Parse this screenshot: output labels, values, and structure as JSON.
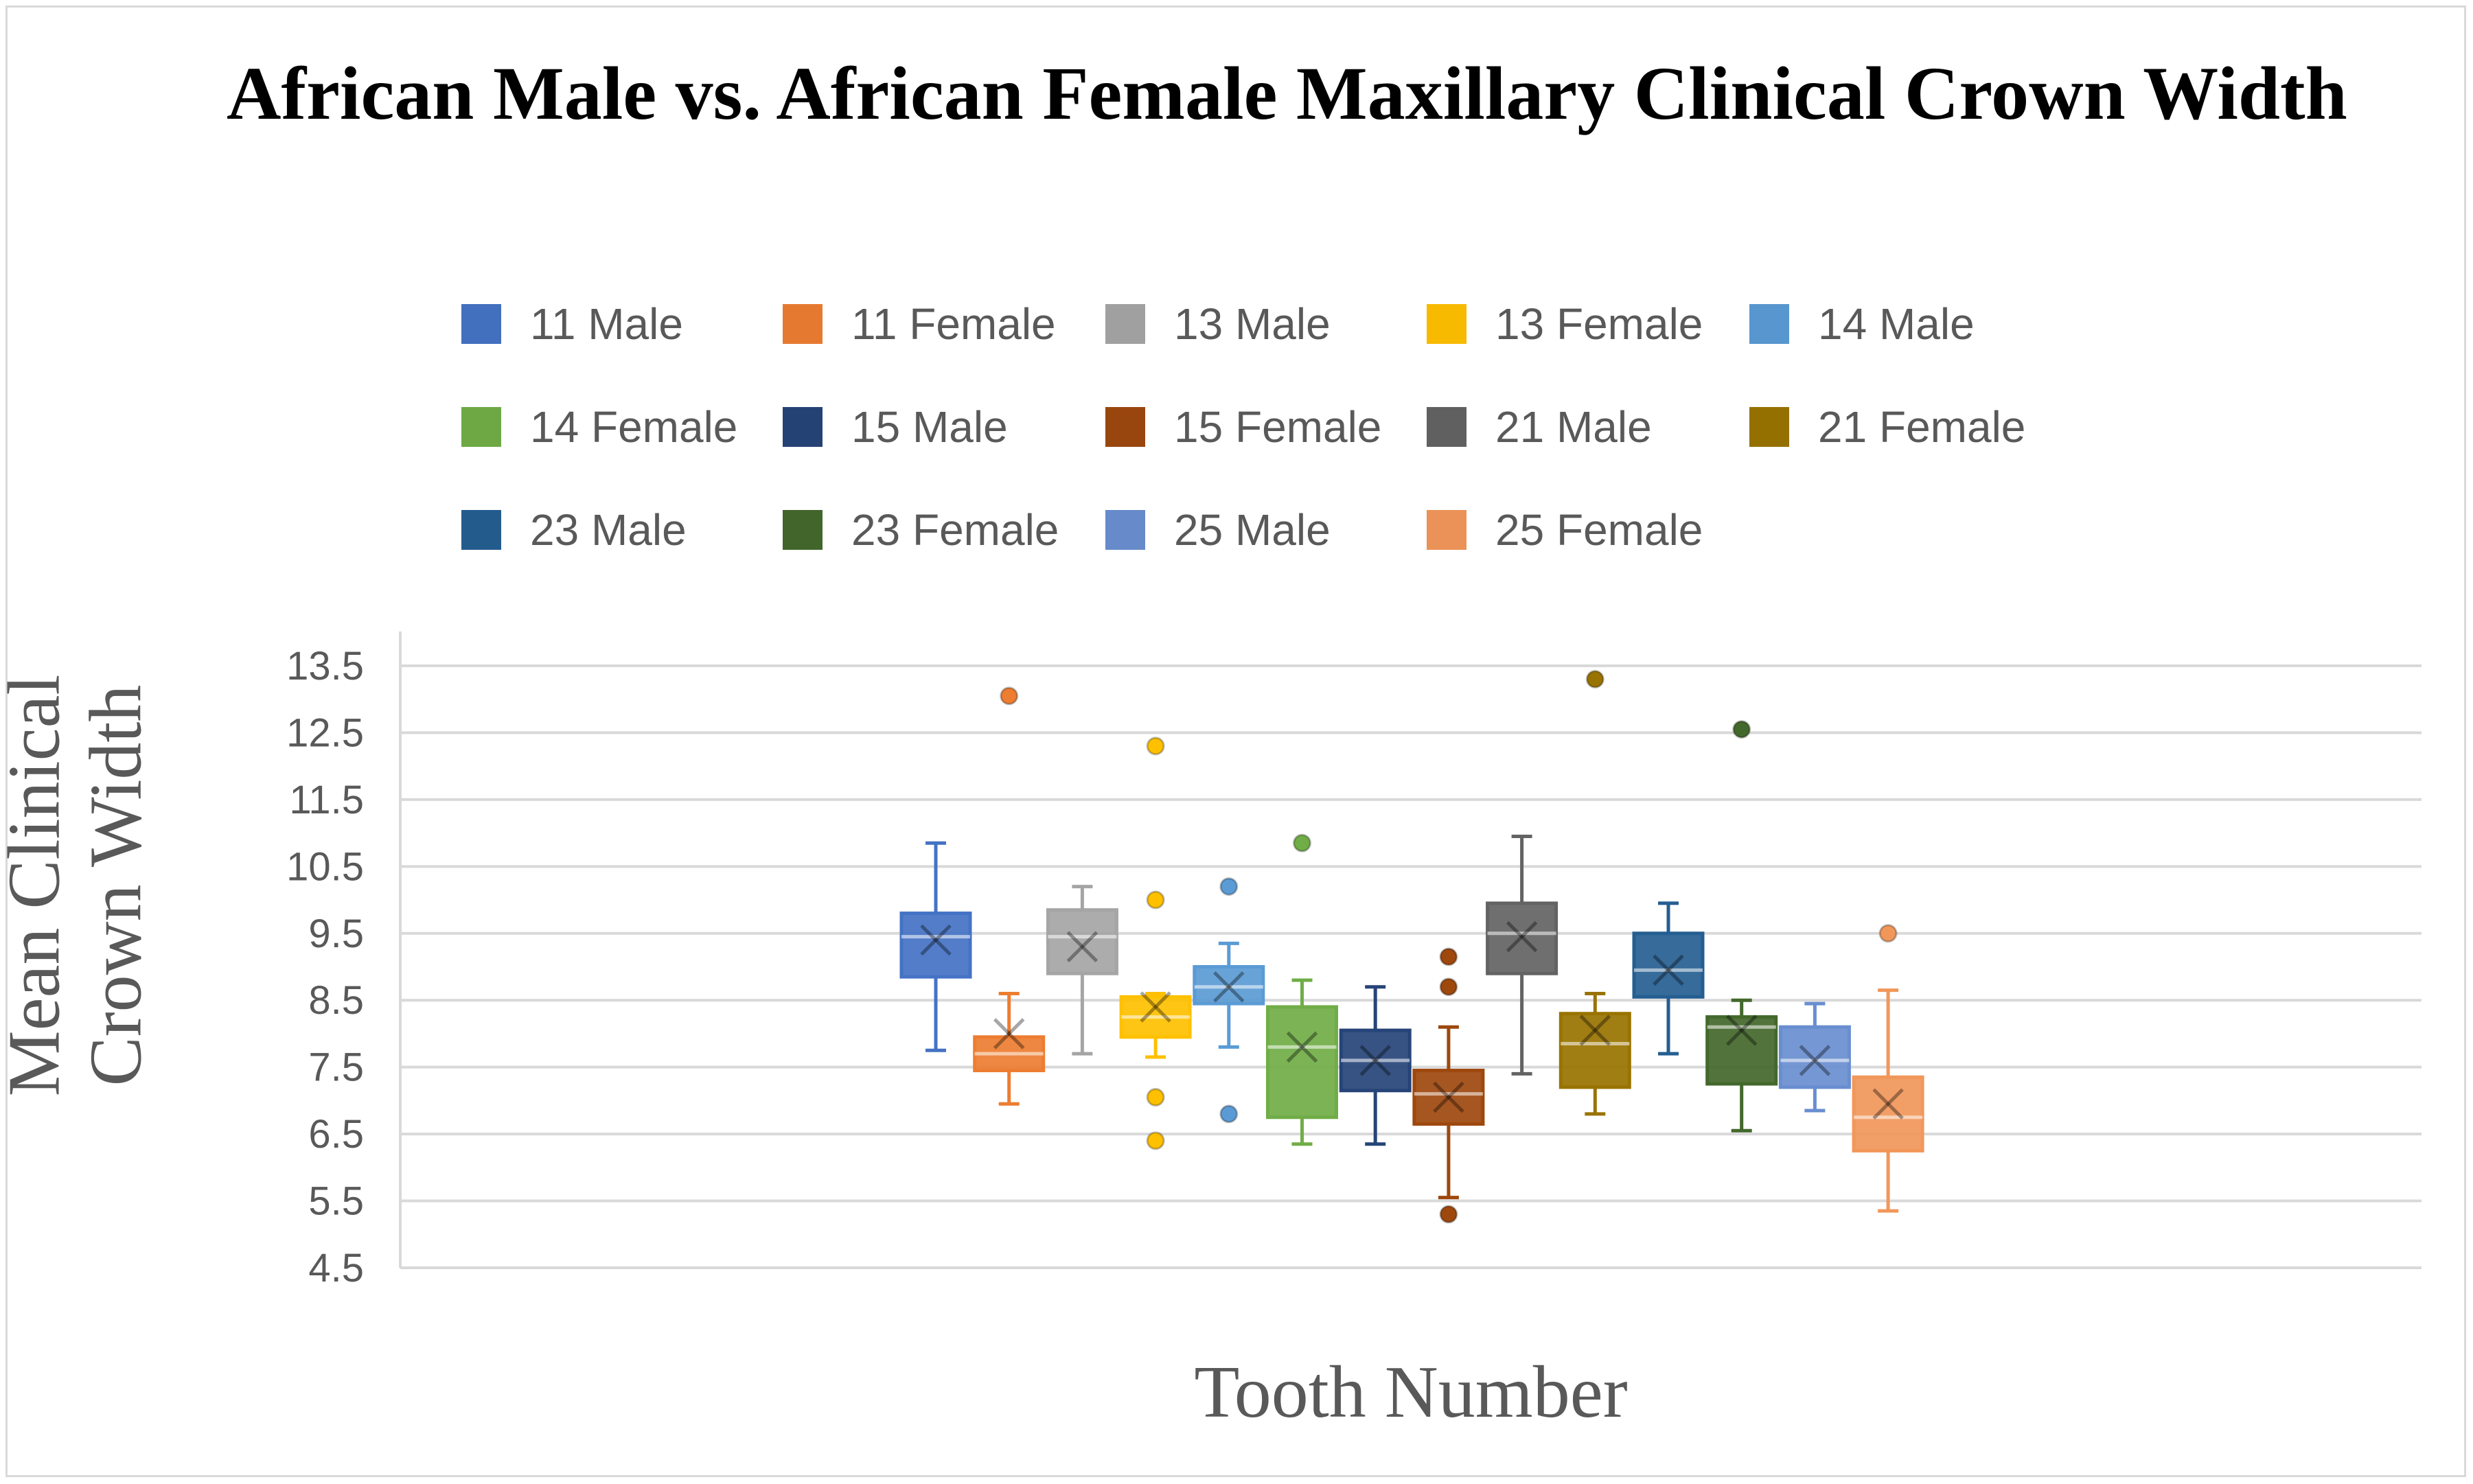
{
  "chart_data": {
    "type": "box",
    "title": "African Male vs. African Female Maxillary Clinical Crown Width",
    "xlabel": "Tooth Number",
    "ylabel": "Mean Clinical Crown Width",
    "ylim": [
      4.5,
      13.5
    ],
    "yticks": [
      "13.5",
      "12.5",
      "11.5",
      "10.5",
      "9.5",
      "8.5",
      "7.5",
      "6.5",
      "5.5",
      "4.5"
    ],
    "grid": true,
    "legend_position": "top",
    "series": [
      {
        "name": "11 Male",
        "color": "#4472c4",
        "fill": "#4472c4",
        "min": 7.75,
        "q1": 8.85,
        "median": 9.45,
        "q3": 9.8,
        "max": 10.85,
        "mean": 9.4,
        "outliers": []
      },
      {
        "name": "11 Female",
        "color": "#ed7d31",
        "fill": "#ed7d31",
        "min": 6.95,
        "q1": 7.45,
        "median": 7.7,
        "q3": 7.95,
        "max": 8.6,
        "mean": 8.0,
        "outliers": [
          13.05
        ]
      },
      {
        "name": "13 Male",
        "color": "#a5a5a5",
        "fill": "#a5a5a5",
        "min": 7.7,
        "q1": 8.9,
        "median": 9.45,
        "q3": 9.85,
        "max": 10.2,
        "mean": 9.3,
        "outliers": []
      },
      {
        "name": "13 Female",
        "color": "#ffc000",
        "fill": "#ffc000",
        "min": 7.65,
        "q1": 7.95,
        "median": 8.25,
        "q3": 8.55,
        "max": 8.6,
        "mean": 8.4,
        "outliers": [
          12.3,
          10.0,
          7.05,
          6.4
        ]
      },
      {
        "name": "14 Male",
        "color": "#5b9bd5",
        "fill": "#5b9bd5",
        "min": 7.8,
        "q1": 8.45,
        "median": 8.7,
        "q3": 9.0,
        "max": 9.35,
        "mean": 8.7,
        "outliers": [
          10.2,
          6.8
        ]
      },
      {
        "name": "14 Female",
        "color": "#70ad47",
        "fill": "#70ad47",
        "min": 6.35,
        "q1": 6.75,
        "median": 7.8,
        "q3": 8.4,
        "max": 8.8,
        "mean": 7.8,
        "outliers": [
          10.85
        ]
      },
      {
        "name": "15 Male",
        "color": "#264478",
        "fill": "#264478",
        "min": 6.35,
        "q1": 7.15,
        "median": 7.6,
        "q3": 8.05,
        "max": 8.7,
        "mean": 7.6,
        "outliers": []
      },
      {
        "name": "15 Female",
        "color": "#9e480e",
        "fill": "#9e480e",
        "min": 5.55,
        "q1": 6.65,
        "median": 7.1,
        "q3": 7.45,
        "max": 8.1,
        "mean": 7.05,
        "outliers": [
          9.15,
          8.7,
          5.3
        ]
      },
      {
        "name": "21 Male",
        "color": "#636363",
        "fill": "#636363",
        "min": 7.4,
        "q1": 8.9,
        "median": 9.5,
        "q3": 9.95,
        "max": 10.95,
        "mean": 9.45,
        "outliers": []
      },
      {
        "name": "21 Female",
        "color": "#997300",
        "fill": "#997300",
        "min": 6.8,
        "q1": 7.2,
        "median": 7.85,
        "q3": 8.3,
        "max": 8.6,
        "mean": 8.05,
        "outliers": [
          13.3
        ]
      },
      {
        "name": "23 Male",
        "color": "#255e91",
        "fill": "#255e91",
        "min": 7.7,
        "q1": 8.55,
        "median": 8.95,
        "q3": 9.5,
        "max": 9.95,
        "mean": 8.95,
        "outliers": []
      },
      {
        "name": "23 Female",
        "color": "#43682b",
        "fill": "#43682b",
        "min": 6.55,
        "q1": 7.25,
        "median": 8.1,
        "q3": 8.25,
        "max": 8.5,
        "mean": 8.05,
        "outliers": [
          12.55
        ]
      },
      {
        "name": "25 Male",
        "color": "#698ed0",
        "fill": "#698ed0",
        "min": 6.85,
        "q1": 7.2,
        "median": 7.6,
        "q3": 8.1,
        "max": 8.45,
        "mean": 7.6,
        "outliers": []
      },
      {
        "name": "25 Female",
        "color": "#f1975a",
        "fill": "#f1975a",
        "min": 5.35,
        "q1": 6.25,
        "median": 6.75,
        "q3": 7.35,
        "max": 8.65,
        "mean": 6.95,
        "outliers": [
          9.5
        ]
      }
    ]
  }
}
